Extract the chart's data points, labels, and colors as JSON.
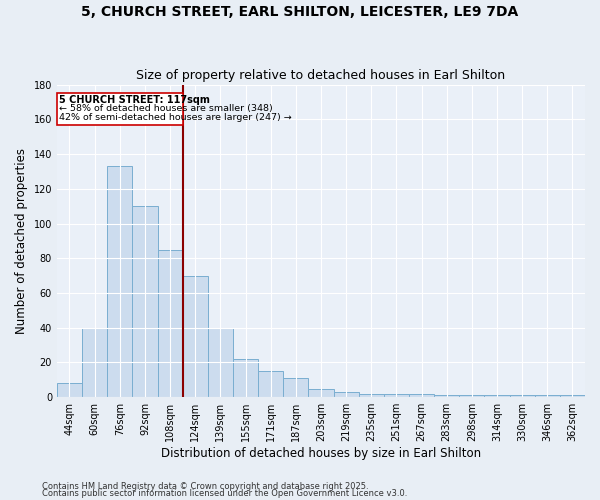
{
  "title": "5, CHURCH STREET, EARL SHILTON, LEICESTER, LE9 7DA",
  "subtitle": "Size of property relative to detached houses in Earl Shilton",
  "xlabel": "Distribution of detached houses by size in Earl Shilton",
  "ylabel": "Number of detached properties",
  "categories": [
    "44sqm",
    "60sqm",
    "76sqm",
    "92sqm",
    "108sqm",
    "124sqm",
    "139sqm",
    "155sqm",
    "171sqm",
    "187sqm",
    "203sqm",
    "219sqm",
    "235sqm",
    "251sqm",
    "267sqm",
    "283sqm",
    "298sqm",
    "314sqm",
    "330sqm",
    "346sqm",
    "362sqm"
  ],
  "values": [
    8,
    40,
    133,
    110,
    85,
    70,
    40,
    22,
    15,
    11,
    5,
    3,
    2,
    2,
    2,
    1,
    1,
    1,
    1,
    1,
    1
  ],
  "bar_color": "#ccdcee",
  "bar_edge_color": "#7aaed0",
  "property_label": "5 CHURCH STREET: 117sqm",
  "annotation_line1": "← 58% of detached houses are smaller (348)",
  "annotation_line2": "42% of semi-detached houses are larger (247) →",
  "vline_color": "#8b0000",
  "annotation_box_color": "#ffffff",
  "annotation_box_edge": "#cc0000",
  "footer1": "Contains HM Land Registry data © Crown copyright and database right 2025.",
  "footer2": "Contains public sector information licensed under the Open Government Licence v3.0.",
  "ylim": [
    0,
    180
  ],
  "yticks": [
    0,
    20,
    40,
    60,
    80,
    100,
    120,
    140,
    160,
    180
  ],
  "title_fontsize": 10,
  "subtitle_fontsize": 9,
  "axis_label_fontsize": 8.5,
  "tick_fontsize": 7,
  "background_color": "#e8eef5",
  "plot_bg_color": "#eaf0f8"
}
